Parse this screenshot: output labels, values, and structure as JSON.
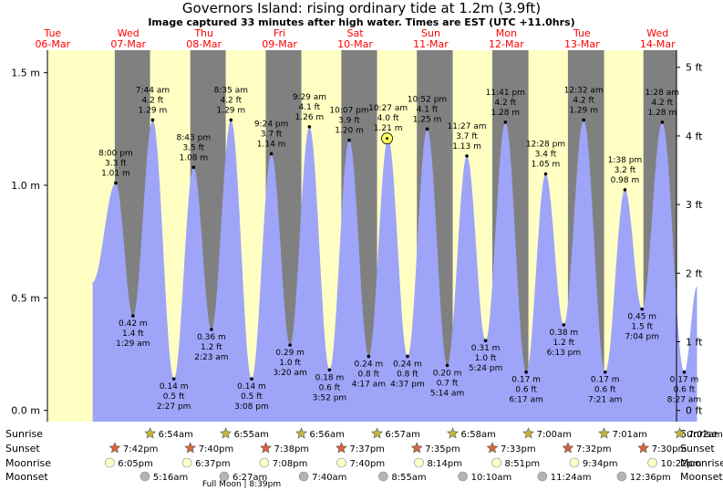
{
  "title": "Governors Island: rising  ordinary tide at 1.2m (3.9ft)",
  "subtitle": "Image captured 33 minutes after high water. Times are EST (UTC +11.0hrs)",
  "colors": {
    "day": "#ffffc4",
    "night": "#808080",
    "tide": "#9ea5f8",
    "day_label": "#ff0000",
    "current_marker": "#ffff66",
    "sun_star": "#c8b43c",
    "sunset_star": "#d8643c",
    "moonrise": "#ffffc8",
    "moonset": "#b4b4b4"
  },
  "days": [
    {
      "name": "Tue",
      "date": "06-Mar"
    },
    {
      "name": "Wed",
      "date": "07-Mar"
    },
    {
      "name": "Thu",
      "date": "08-Mar"
    },
    {
      "name": "Fri",
      "date": "09-Mar"
    },
    {
      "name": "Sat",
      "date": "10-Mar"
    },
    {
      "name": "Sun",
      "date": "11-Mar"
    },
    {
      "name": "Mon",
      "date": "12-Mar"
    },
    {
      "name": "Tue",
      "date": "13-Mar"
    },
    {
      "name": "Wed",
      "date": "14-Mar"
    }
  ],
  "chart_data": {
    "type": "area",
    "title": "Governors Island: rising  ordinary tide at 1.2m (3.9ft)",
    "left_axis": {
      "unit": "m",
      "range": [
        -0.05,
        1.6
      ],
      "ticks": [
        "0.0 m",
        "0.5 m",
        "1.0 m",
        "1.5 m"
      ],
      "tick_values": [
        0,
        0.5,
        1.0,
        1.5
      ]
    },
    "right_axis": {
      "unit": "ft",
      "ticks": [
        "0 ft",
        "1 ft",
        "2 ft",
        "3 ft",
        "4 ft",
        "5 ft"
      ],
      "tick_values": [
        0,
        1,
        2,
        3,
        4,
        5
      ]
    },
    "x_range_days": [
      5.93,
      14.25
    ],
    "extremes": [
      {
        "type": "high",
        "day": 6,
        "time": "8:00 pm",
        "ft": "3.3 ft",
        "m": "1.01 m",
        "value": 1.01
      },
      {
        "type": "low",
        "day": 7,
        "time": "1:29 am",
        "ft": "1.4 ft",
        "m": "0.42 m",
        "value": 0.42
      },
      {
        "type": "high",
        "day": 7,
        "time": "7:44 am",
        "ft": "4.2 ft",
        "m": "1.29 m",
        "value": 1.29
      },
      {
        "type": "low",
        "day": 7,
        "time": "2:27 pm",
        "ft": "0.5 ft",
        "m": "0.14 m",
        "value": 0.14
      },
      {
        "type": "high",
        "day": 7,
        "time": "8:43 pm",
        "ft": "3.5 ft",
        "m": "1.08 m",
        "value": 1.08
      },
      {
        "type": "low",
        "day": 8,
        "time": "2:23 am",
        "ft": "1.2 ft",
        "m": "0.36 m",
        "value": 0.36
      },
      {
        "type": "high",
        "day": 8,
        "time": "8:35 am",
        "ft": "4.2 ft",
        "m": "1.29 m",
        "value": 1.29
      },
      {
        "type": "low",
        "day": 8,
        "time": "3:08 pm",
        "ft": "0.5 ft",
        "m": "0.14 m",
        "value": 0.14
      },
      {
        "type": "high",
        "day": 8,
        "time": "9:24 pm",
        "ft": "3.7 ft",
        "m": "1.14 m",
        "value": 1.14
      },
      {
        "type": "low",
        "day": 9,
        "time": "3:20 am",
        "ft": "1.0 ft",
        "m": "0.29 m",
        "value": 0.29
      },
      {
        "type": "high",
        "day": 9,
        "time": "9:29 am",
        "ft": "4.1 ft",
        "m": "1.26 m",
        "value": 1.26
      },
      {
        "type": "low",
        "day": 9,
        "time": "3:52 pm",
        "ft": "0.6 ft",
        "m": "0.18 m",
        "value": 0.18
      },
      {
        "type": "high",
        "day": 9,
        "time": "10:07 pm",
        "ft": "3.9 ft",
        "m": "1.20 m",
        "value": 1.2
      },
      {
        "type": "low",
        "day": 10,
        "time": "4:17 am",
        "ft": "0.8 ft",
        "m": "0.24 m",
        "value": 0.24
      },
      {
        "type": "high",
        "day": 10,
        "time": "10:27 am",
        "ft": "4.0 ft",
        "m": "1.21 m",
        "value": 1.21
      },
      {
        "type": "low",
        "day": 10,
        "time": "4:37 pm",
        "ft": "0.8 ft",
        "m": "0.24 m",
        "value": 0.24
      },
      {
        "type": "high",
        "day": 10,
        "time": "10:52 pm",
        "ft": "4.1 ft",
        "m": "1.25 m",
        "value": 1.25
      },
      {
        "type": "low",
        "day": 11,
        "time": "5:14 am",
        "ft": "0.7 ft",
        "m": "0.20 m",
        "value": 0.2
      },
      {
        "type": "high",
        "day": 11,
        "time": "11:27 am",
        "ft": "3.7 ft",
        "m": "1.13 m",
        "value": 1.13
      },
      {
        "type": "low",
        "day": 11,
        "time": "5:24 pm",
        "ft": "1.0 ft",
        "m": "0.31 m",
        "value": 0.31
      },
      {
        "type": "high",
        "day": 11,
        "time": "11:41 pm",
        "ft": "4.2 ft",
        "m": "1.28 m",
        "value": 1.28
      },
      {
        "type": "low",
        "day": 12,
        "time": "6:17 am",
        "ft": "0.6 ft",
        "m": "0.17 m",
        "value": 0.17
      },
      {
        "type": "high",
        "day": 12,
        "time": "12:28 pm",
        "ft": "3.4 ft",
        "m": "1.05 m",
        "value": 1.05
      },
      {
        "type": "low",
        "day": 12,
        "time": "6:13 pm",
        "ft": "1.2 ft",
        "m": "0.38 m",
        "value": 0.38
      },
      {
        "type": "high",
        "day": 13,
        "time": "12:32 am",
        "ft": "4.2 ft",
        "m": "1.29 m",
        "value": 1.29
      },
      {
        "type": "low",
        "day": 13,
        "time": "7:21 am",
        "ft": "0.6 ft",
        "m": "0.17 m",
        "value": 0.17
      },
      {
        "type": "high",
        "day": 13,
        "time": "1:38 pm",
        "ft": "3.2 ft",
        "m": "0.98 m",
        "value": 0.98
      },
      {
        "type": "low",
        "day": 13,
        "time": "7:04 pm",
        "ft": "1.5 ft",
        "m": "0.45 m",
        "value": 0.45
      },
      {
        "type": "high",
        "day": 14,
        "time": "1:28 am",
        "ft": "4.2 ft",
        "m": "1.28 m",
        "value": 1.28
      },
      {
        "type": "low",
        "day": 14,
        "time": "8:27 am",
        "ft": "0.6 ft",
        "m": "0.17 m",
        "value": 0.17
      }
    ],
    "current": {
      "day": 10,
      "time": "11:00 am",
      "value": 1.2
    },
    "curve_edges": {
      "start": {
        "day": 6,
        "time": "12:40 pm",
        "value": 0.57
      },
      "end": {
        "day": 14,
        "time": "12:30 pm",
        "value": 0.55
      }
    }
  },
  "sun_moon": {
    "row_labels": [
      "Sunrise",
      "Sunset",
      "Moonrise",
      "Moonset"
    ],
    "sunrise": [
      {
        "day": 7,
        "time": "6:54am"
      },
      {
        "day": 8,
        "time": "6:55am"
      },
      {
        "day": 9,
        "time": "6:56am"
      },
      {
        "day": 10,
        "time": "6:57am"
      },
      {
        "day": 11,
        "time": "6:58am"
      },
      {
        "day": 12,
        "time": "7:00am"
      },
      {
        "day": 13,
        "time": "7:01am"
      },
      {
        "day": 14,
        "time": "7:02am"
      }
    ],
    "sunset": [
      {
        "day": 6,
        "time": "7:42pm"
      },
      {
        "day": 7,
        "time": "7:40pm"
      },
      {
        "day": 8,
        "time": "7:38pm"
      },
      {
        "day": 9,
        "time": "7:37pm"
      },
      {
        "day": 10,
        "time": "7:35pm"
      },
      {
        "day": 11,
        "time": "7:33pm"
      },
      {
        "day": 12,
        "time": "7:32pm"
      },
      {
        "day": 13,
        "time": "7:30pm"
      }
    ],
    "moonrise": [
      {
        "day": 6,
        "time": "6:05pm"
      },
      {
        "day": 7,
        "time": "6:37pm"
      },
      {
        "day": 8,
        "time": "7:08pm"
      },
      {
        "day": 9,
        "time": "7:40pm"
      },
      {
        "day": 10,
        "time": "8:14pm"
      },
      {
        "day": 11,
        "time": "8:51pm"
      },
      {
        "day": 12,
        "time": "9:34pm"
      },
      {
        "day": 13,
        "time": "10:22pm"
      }
    ],
    "moonset": [
      {
        "day": 7,
        "time": "5:16am"
      },
      {
        "day": 8,
        "time": "6:27am"
      },
      {
        "day": 9,
        "time": "7:40am"
      },
      {
        "day": 10,
        "time": "8:55am"
      },
      {
        "day": 11,
        "time": "10:10am"
      },
      {
        "day": 12,
        "time": "11:24am"
      },
      {
        "day": 13,
        "time": "12:36pm"
      }
    ],
    "note": {
      "day": 8,
      "time": "8:39pm",
      "text": "Full Moon | 8:39pm"
    }
  }
}
